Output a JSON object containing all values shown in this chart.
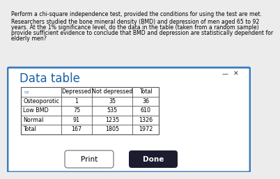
{
  "line1": "Perform a chi-square independence test, provided the conditions for using the test are met.",
  "line2": "Researchers studied the bone mineral density (BMD) and depression of men aged 65 to 92",
  "line3": "years. At the 1% significance level, do the data in the table (taken from a random sample)",
  "line4": "provide sufficient evidence to conclude that BMD and depression are statistically dependent for",
  "line5": "elderly men?",
  "dialog_title": "Data table",
  "table_headers": [
    "",
    "Depressed",
    "Not depressed",
    "Total"
  ],
  "table_rows": [
    [
      "Osteoporotic",
      "1",
      "35",
      "36"
    ],
    [
      "Low BMD",
      "75",
      "535",
      "610"
    ],
    [
      "Normal",
      "91",
      "1235",
      "1326"
    ],
    [
      "Total",
      "167",
      "1805",
      "1972"
    ]
  ],
  "top_bg": "#ececec",
  "dialog_bg": "#ffffff",
  "dialog_border": "#3a7abf",
  "title_color": "#1a5fa8",
  "button_print_bg": "#ffffff",
  "button_done_bg": "#1c1c2e",
  "button_text_print": "Print",
  "button_text_done": "Done",
  "minus_x_color": "#333333"
}
